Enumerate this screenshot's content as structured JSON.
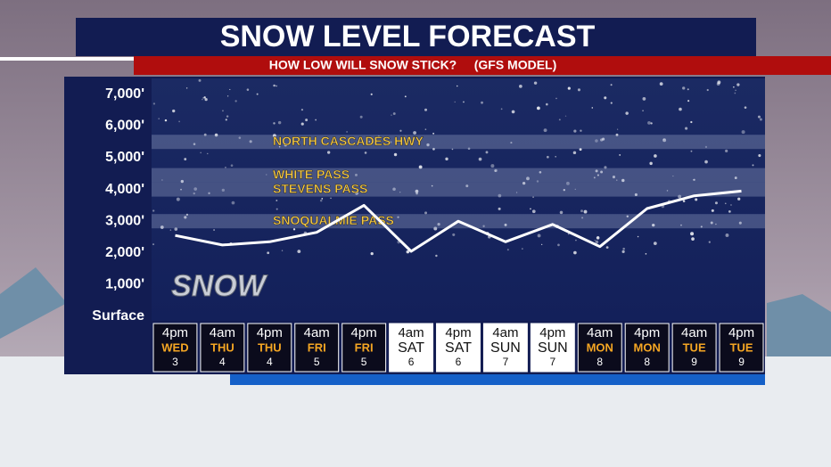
{
  "chart_data": {
    "type": "line",
    "title": "SNOW LEVEL FORECAST",
    "subtitle": "HOW LOW WILL SNOW STICK?",
    "source_note": "(GFS MODEL)",
    "watermark": "SNOW",
    "categories": [
      "4pm",
      "4am",
      "4pm",
      "4am",
      "4pm",
      "4am",
      "4pm",
      "4am",
      "4pm",
      "4am",
      "4pm",
      "4am",
      "4pm"
    ],
    "category_days": [
      "WED",
      "THU",
      "THU",
      "FRI",
      "FRI",
      "SAT",
      "SAT",
      "SUN",
      "SUN",
      "MON",
      "MON",
      "TUE",
      "TUE"
    ],
    "category_dates": [
      "3",
      "4",
      "4",
      "5",
      "5",
      "6",
      "6",
      "7",
      "7",
      "8",
      "8",
      "9",
      "9"
    ],
    "category_box_colors": [
      "#0b0b1c",
      "#0b0b1c",
      "#0b0b1c",
      "#0b0b1c",
      "#0b0b1c",
      "#ffffff",
      "#ffffff",
      "#ffffff",
      "#ffffff",
      "#0b0b1c",
      "#0b0b1c",
      "#0b0b1c",
      "#0b0b1c"
    ],
    "series": [
      {
        "name": "Snow level",
        "color": "#ffffff",
        "values": [
          2550,
          2250,
          2350,
          2650,
          3500,
          2050,
          3000,
          2350,
          2900,
          2200,
          3400,
          3800,
          3950
        ]
      }
    ],
    "reference_lines": [
      {
        "label": "NORTH CASCADES HWY",
        "value": 5500
      },
      {
        "label": "WHITE PASS",
        "value": 4450
      },
      {
        "label": "STEVENS PASS",
        "value": 4000
      },
      {
        "label": "SNOQUALMIE PASS",
        "value": 3000
      }
    ],
    "ylim": [
      0,
      7500
    ],
    "yticks": [
      {
        "value": 0,
        "label": "Surface"
      },
      {
        "value": 1000,
        "label": "1,000'"
      },
      {
        "value": 2000,
        "label": "2,000'"
      },
      {
        "value": 3000,
        "label": "3,000'"
      },
      {
        "value": 4000,
        "label": "4,000'"
      },
      {
        "value": 5000,
        "label": "5,000'"
      },
      {
        "value": 6000,
        "label": "6,000'"
      },
      {
        "value": 7000,
        "label": "7,000'"
      }
    ]
  }
}
